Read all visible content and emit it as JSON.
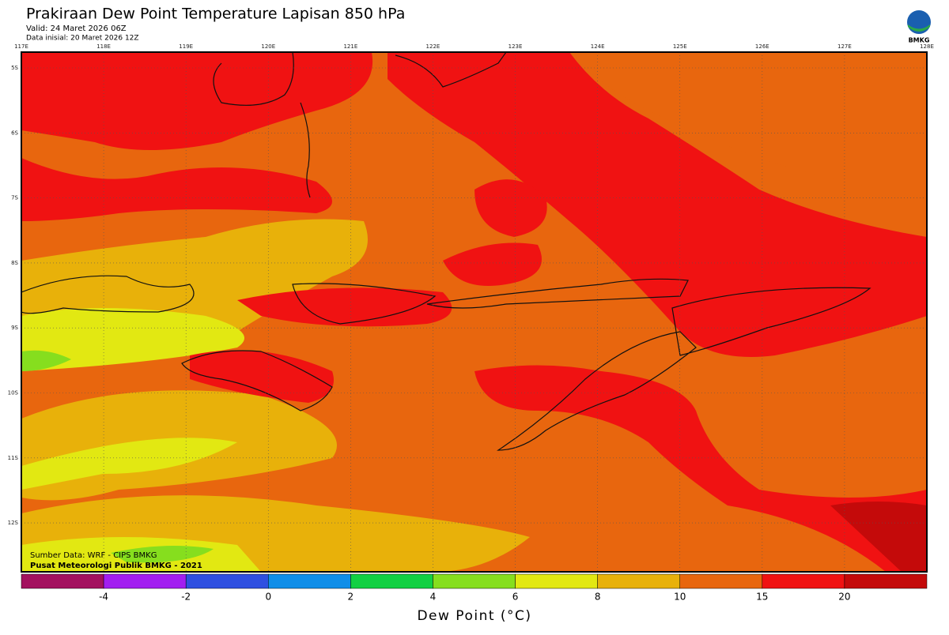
{
  "header": {
    "title": "Prakiraan Dew Point Temperature Lapisan 850 hPa",
    "valid": "Valid: 24 Maret 2026 06Z",
    "init": "Data inisial: 20 Maret 2026 12Z"
  },
  "logo": "BMKG",
  "map": {
    "lon_labels": [
      "117E",
      "118E",
      "119E",
      "120E",
      "121E",
      "122E",
      "123E",
      "124E",
      "125E",
      "126E",
      "127E",
      "128E"
    ],
    "lat_labels": [
      "5S",
      "6S",
      "7S",
      "8S",
      "9S",
      "10S",
      "11S",
      "12S"
    ],
    "credits": [
      "Sumber Data: WRF - CIPS BMKG",
      "Pusat Meteorologi Publik BMKG - 2021"
    ]
  },
  "colorbar": {
    "colors": [
      "#a3115f",
      "#a21ef0",
      "#2f4fe0",
      "#108ee8",
      "#12d043",
      "#86de1e",
      "#e2e812",
      "#e8b10a",
      "#e8660e",
      "#f01212",
      "#c40a0a"
    ],
    "ticks": [
      -4,
      -2,
      0,
      2,
      4,
      6,
      8,
      10,
      15,
      20
    ],
    "label": "Dew Point (°C)"
  }
}
